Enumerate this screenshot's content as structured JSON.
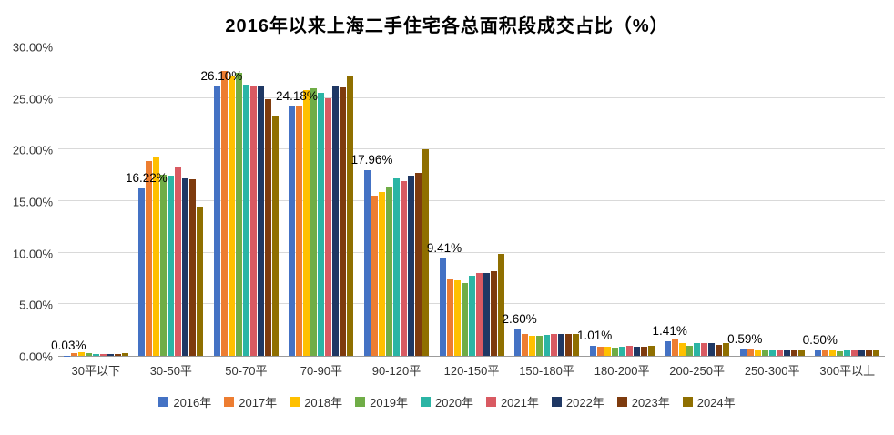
{
  "chart_data": {
    "type": "bar",
    "title": "2016年以来上海二手住宅各总面积段成交占比（%）",
    "categories": [
      "30平以下",
      "30-50平",
      "50-70平",
      "70-90平",
      "90-120平",
      "120-150平",
      "150-180平",
      "180-200平",
      "200-250平",
      "250-300平",
      "300平以上"
    ],
    "series": [
      {
        "name": "2016年",
        "color": "#4472C4",
        "values": [
          0.03,
          16.22,
          26.1,
          24.18,
          17.96,
          9.41,
          2.6,
          1.01,
          1.41,
          0.59,
          0.5
        ]
      },
      {
        "name": "2017年",
        "color": "#ED7D31",
        "values": [
          0.3,
          18.9,
          27.6,
          24.2,
          15.5,
          7.4,
          2.1,
          0.9,
          1.55,
          0.6,
          0.55
        ]
      },
      {
        "name": "2018年",
        "color": "#FFC000",
        "values": [
          0.35,
          19.3,
          27.2,
          25.8,
          15.9,
          7.3,
          1.9,
          0.85,
          1.2,
          0.55,
          0.5
        ]
      },
      {
        "name": "2019年",
        "color": "#70AD47",
        "values": [
          0.25,
          17.6,
          27.4,
          25.9,
          16.4,
          7.1,
          1.9,
          0.8,
          1.0,
          0.5,
          0.45
        ]
      },
      {
        "name": "2020年",
        "color": "#2BB5A5",
        "values": [
          0.2,
          17.5,
          26.3,
          25.5,
          17.2,
          7.8,
          2.0,
          0.9,
          1.2,
          0.55,
          0.5
        ]
      },
      {
        "name": "2021年",
        "color": "#D95A62",
        "values": [
          0.2,
          18.3,
          26.2,
          25.0,
          16.9,
          8.0,
          2.1,
          1.0,
          1.2,
          0.5,
          0.5
        ]
      },
      {
        "name": "2022年",
        "color": "#1F3864",
        "values": [
          0.15,
          17.2,
          26.2,
          26.1,
          17.5,
          8.0,
          2.1,
          0.9,
          1.2,
          0.5,
          0.55
        ]
      },
      {
        "name": "2023年",
        "color": "#7E3B0E",
        "values": [
          0.2,
          17.1,
          24.9,
          26.0,
          17.7,
          8.2,
          2.1,
          0.9,
          1.1,
          0.5,
          0.5
        ]
      },
      {
        "name": "2024年",
        "color": "#8F6F00",
        "values": [
          0.3,
          14.5,
          23.3,
          27.2,
          20.0,
          9.9,
          2.15,
          1.0,
          1.2,
          0.55,
          0.5
        ]
      }
    ],
    "label_series": "2016年",
    "data_labels": [
      "0.03%",
      "16.22%",
      "26.10%",
      "24.18%",
      "17.96%",
      "9.41%",
      "2.60%",
      "1.01%",
      "1.41%",
      "0.59%",
      "0.50%"
    ],
    "ylabel_ticks": [
      "0.00%",
      "5.00%",
      "10.00%",
      "15.00%",
      "20.00%",
      "25.00%",
      "30.00%"
    ],
    "ylim": [
      0,
      30
    ],
    "grid": true,
    "legend_position": "bottom"
  }
}
